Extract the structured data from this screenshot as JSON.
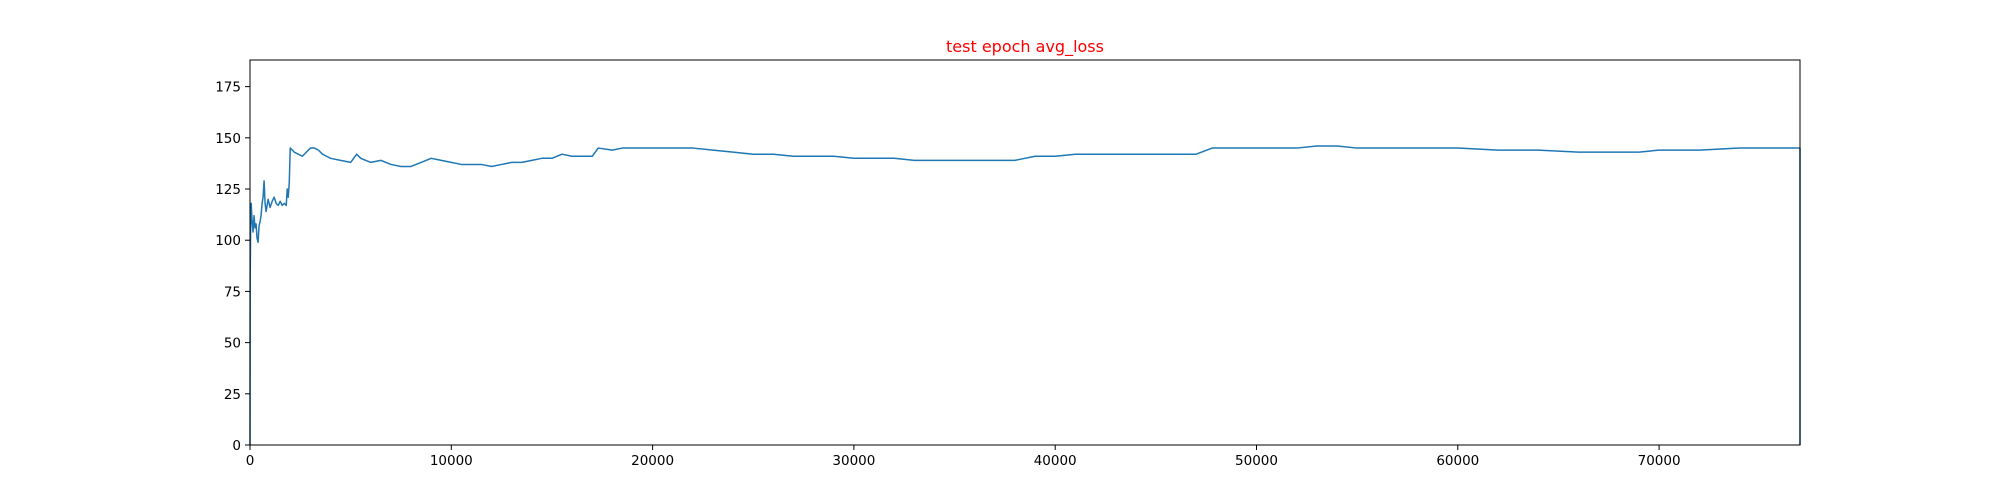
{
  "chart_data": {
    "type": "line",
    "title": "test epoch avg_loss",
    "title_color": "#ff0000",
    "xlabel": "",
    "ylabel": "",
    "xlim": [
      0,
      77000
    ],
    "ylim": [
      0,
      188
    ],
    "x_ticks": [
      0,
      10000,
      20000,
      30000,
      40000,
      50000,
      60000,
      70000
    ],
    "x_tick_labels": [
      "0",
      "10000",
      "20000",
      "30000",
      "40000",
      "50000",
      "60000",
      "70000"
    ],
    "y_ticks": [
      0,
      25,
      50,
      75,
      100,
      125,
      150,
      175
    ],
    "y_tick_labels": [
      "0",
      "25",
      "50",
      "75",
      "100",
      "125",
      "150",
      "175"
    ],
    "grid": false,
    "legend": "none",
    "series": [
      {
        "color": "#1f77b4",
        "points": [
          [
            0,
            0
          ],
          [
            10,
            82
          ],
          [
            30,
            105
          ],
          [
            60,
            118
          ],
          [
            100,
            110
          ],
          [
            150,
            104
          ],
          [
            200,
            112
          ],
          [
            250,
            106
          ],
          [
            300,
            108
          ],
          [
            350,
            101
          ],
          [
            400,
            99
          ],
          [
            450,
            107
          ],
          [
            500,
            109
          ],
          [
            550,
            112
          ],
          [
            600,
            118
          ],
          [
            650,
            121
          ],
          [
            700,
            129
          ],
          [
            750,
            118
          ],
          [
            800,
            114
          ],
          [
            900,
            120
          ],
          [
            1000,
            116
          ],
          [
            1100,
            119
          ],
          [
            1200,
            121
          ],
          [
            1300,
            118
          ],
          [
            1400,
            117
          ],
          [
            1500,
            119
          ],
          [
            1600,
            117
          ],
          [
            1700,
            118
          ],
          [
            1800,
            117
          ],
          [
            1850,
            125
          ],
          [
            1900,
            121
          ],
          [
            1950,
            128
          ],
          [
            2000,
            145
          ],
          [
            2200,
            143
          ],
          [
            2400,
            142
          ],
          [
            2600,
            141
          ],
          [
            2800,
            143
          ],
          [
            3000,
            145
          ],
          [
            3200,
            145
          ],
          [
            3400,
            144
          ],
          [
            3600,
            142
          ],
          [
            3800,
            141
          ],
          [
            4000,
            140
          ],
          [
            4500,
            139
          ],
          [
            5000,
            138
          ],
          [
            5300,
            142
          ],
          [
            5500,
            140
          ],
          [
            6000,
            138
          ],
          [
            6500,
            139
          ],
          [
            7000,
            137
          ],
          [
            7500,
            136
          ],
          [
            8000,
            136
          ],
          [
            8500,
            138
          ],
          [
            9000,
            140
          ],
          [
            9500,
            139
          ],
          [
            10000,
            138
          ],
          [
            10500,
            137
          ],
          [
            11000,
            137
          ],
          [
            11500,
            137
          ],
          [
            12000,
            136
          ],
          [
            12500,
            137
          ],
          [
            13000,
            138
          ],
          [
            13500,
            138
          ],
          [
            14000,
            139
          ],
          [
            14500,
            140
          ],
          [
            15000,
            140
          ],
          [
            15500,
            142
          ],
          [
            16000,
            141
          ],
          [
            16500,
            141
          ],
          [
            17000,
            141
          ],
          [
            17300,
            145
          ],
          [
            18000,
            144
          ],
          [
            18500,
            145
          ],
          [
            19000,
            145
          ],
          [
            20000,
            145
          ],
          [
            21000,
            145
          ],
          [
            22000,
            145
          ],
          [
            23000,
            144
          ],
          [
            24000,
            143
          ],
          [
            25000,
            142
          ],
          [
            26000,
            142
          ],
          [
            27000,
            141
          ],
          [
            28000,
            141
          ],
          [
            29000,
            141
          ],
          [
            30000,
            140
          ],
          [
            31000,
            140
          ],
          [
            32000,
            140
          ],
          [
            33000,
            139
          ],
          [
            34000,
            139
          ],
          [
            35000,
            139
          ],
          [
            36000,
            139
          ],
          [
            37000,
            139
          ],
          [
            38000,
            139
          ],
          [
            38500,
            140
          ],
          [
            39000,
            141
          ],
          [
            40000,
            141
          ],
          [
            41000,
            142
          ],
          [
            42000,
            142
          ],
          [
            43000,
            142
          ],
          [
            44000,
            142
          ],
          [
            45000,
            142
          ],
          [
            46000,
            142
          ],
          [
            47000,
            142
          ],
          [
            47800,
            145
          ],
          [
            48500,
            145
          ],
          [
            50000,
            145
          ],
          [
            51000,
            145
          ],
          [
            52000,
            145
          ],
          [
            53000,
            146
          ],
          [
            54000,
            146
          ],
          [
            55000,
            145
          ],
          [
            56000,
            145
          ],
          [
            57000,
            145
          ],
          [
            58000,
            145
          ],
          [
            59000,
            145
          ],
          [
            60000,
            145
          ],
          [
            62000,
            144
          ],
          [
            64000,
            144
          ],
          [
            66000,
            143
          ],
          [
            68000,
            143
          ],
          [
            69000,
            143
          ],
          [
            70000,
            144
          ],
          [
            72000,
            144
          ],
          [
            74000,
            145
          ],
          [
            75000,
            145
          ],
          [
            76000,
            145
          ],
          [
            77000,
            145
          ],
          [
            77000,
            0
          ]
        ]
      }
    ]
  }
}
